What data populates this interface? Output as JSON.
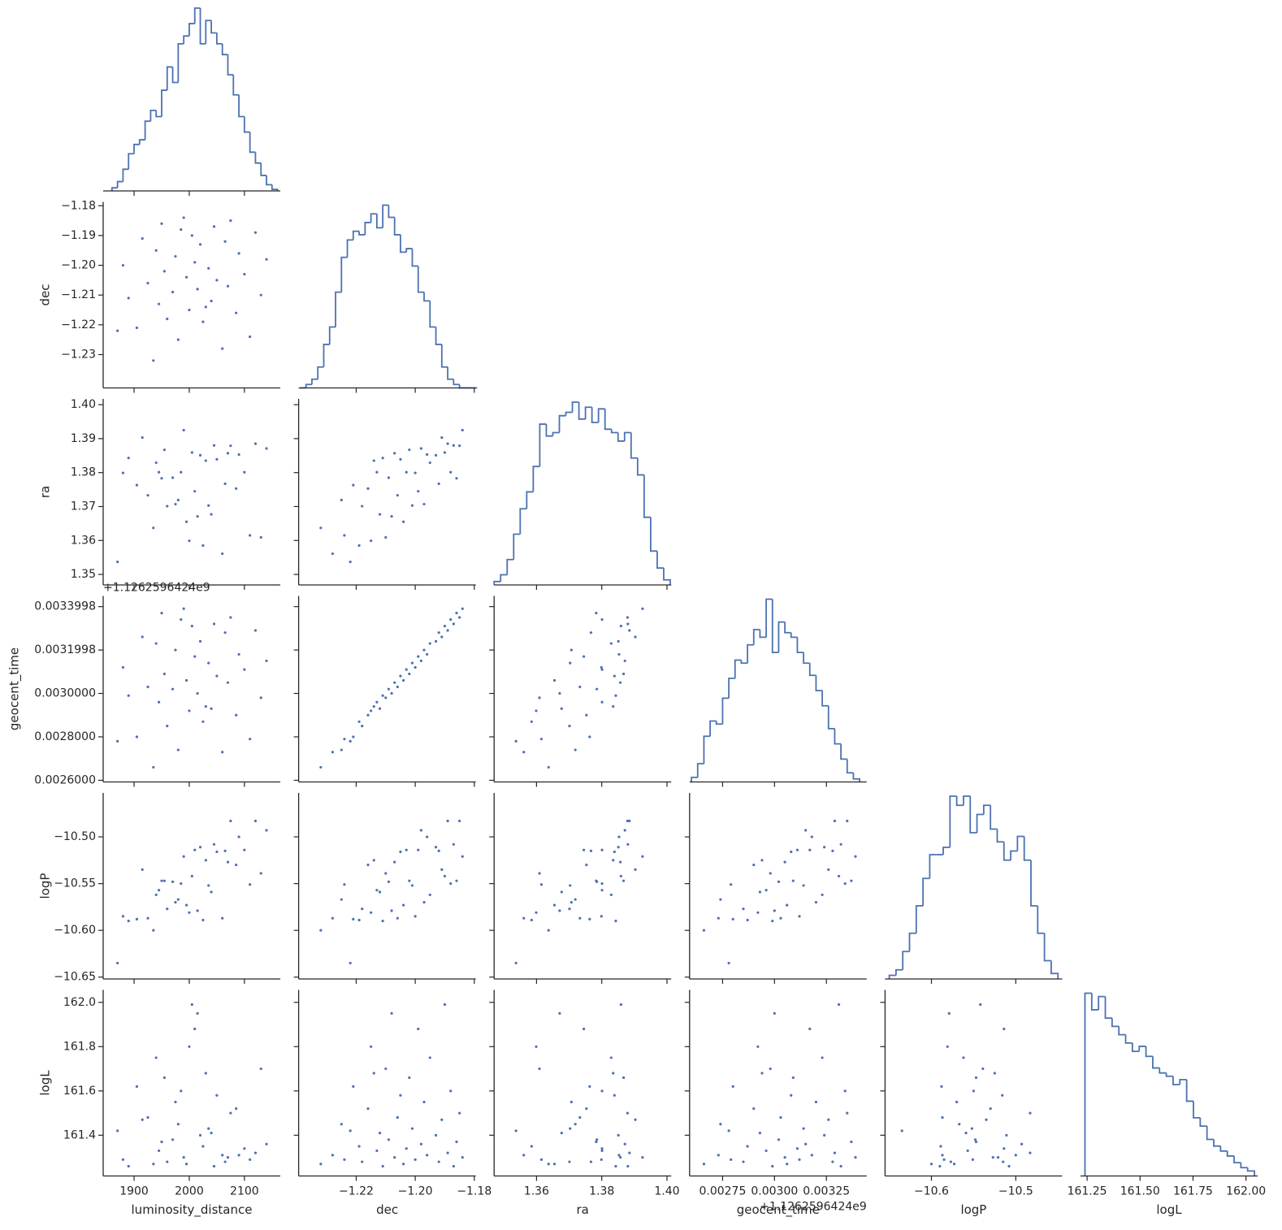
{
  "chart_data": {
    "type": "corner",
    "color": "#4c72b0",
    "variables": [
      {
        "name": "luminosity_distance",
        "values": [
          1935,
          2060,
          1980,
          2110,
          1905,
          2025,
          1960,
          2085,
          2000,
          1945,
          2040,
          1890,
          2130,
          1970,
          2015,
          2070,
          1925,
          2050,
          1995,
          2100,
          1955,
          2035,
          1880,
          2010,
          2140,
          1975,
          2090,
          1940,
          2020,
          2065,
          1915,
          2005,
          2120,
          1985,
          2045,
          1950,
          2075,
          1990,
          2030,
          1870
        ],
        "xlim": [
          1844,
          2165
        ],
        "xticks": [
          1900,
          2000,
          2100
        ],
        "hist": {
          "bins": [
            1860,
            1870,
            1880,
            1890,
            1900,
            1910,
            1920,
            1930,
            1940,
            1950,
            1960,
            1970,
            1980,
            1990,
            2000,
            2010,
            2020,
            2030,
            2040,
            2050,
            2060,
            2070,
            2080,
            2090,
            2100,
            2110,
            2120,
            2130,
            2140,
            2150,
            2160
          ],
          "counts": [
            2,
            6,
            14,
            24,
            30,
            33,
            45,
            52,
            48,
            65,
            80,
            70,
            95,
            100,
            108,
            118,
            95,
            110,
            102,
            95,
            88,
            75,
            62,
            48,
            38,
            25,
            18,
            10,
            4,
            1
          ]
        }
      },
      {
        "name": "dec",
        "values": [
          -1.232,
          -1.228,
          -1.225,
          -1.224,
          -1.221,
          -1.219,
          -1.218,
          -1.216,
          -1.215,
          -1.213,
          -1.212,
          -1.211,
          -1.21,
          -1.209,
          -1.208,
          -1.207,
          -1.206,
          -1.205,
          -1.204,
          -1.203,
          -1.202,
          -1.201,
          -1.2,
          -1.199,
          -1.198,
          -1.197,
          -1.196,
          -1.195,
          -1.193,
          -1.192,
          -1.191,
          -1.19,
          -1.189,
          -1.188,
          -1.187,
          -1.186,
          -1.185,
          -1.184,
          -1.214,
          -1.222
        ],
        "xlim": [
          -1.2395,
          -1.1795
        ],
        "xticks": [
          {
            "value": -1.22,
            "label": "−1.22"
          },
          {
            "value": -1.2,
            "label": "−1.20"
          },
          {
            "value": -1.18,
            "label": "−1.18"
          }
        ],
        "ylim": [
          -1.2412,
          -1.1787
        ],
        "yticks": [
          {
            "value": -1.23,
            "label": "−1.23"
          },
          {
            "value": -1.22,
            "label": "−1.22"
          },
          {
            "value": -1.21,
            "label": "−1.21"
          },
          {
            "value": -1.2,
            "label": "−1.20"
          },
          {
            "value": -1.19,
            "label": "−1.19"
          },
          {
            "value": -1.18,
            "label": "−1.18"
          }
        ],
        "hist": {
          "bins": [
            -1.239,
            -1.237,
            -1.235,
            -1.233,
            -1.231,
            -1.229,
            -1.227,
            -1.225,
            -1.223,
            -1.221,
            -1.219,
            -1.217,
            -1.215,
            -1.213,
            -1.211,
            -1.209,
            -1.207,
            -1.205,
            -1.203,
            -1.201,
            -1.199,
            -1.197,
            -1.195,
            -1.193,
            -1.191,
            -1.189,
            -1.187,
            -1.185,
            -1.183,
            -1.181,
            -1.179
          ],
          "counts": [
            0,
            2,
            5,
            12,
            25,
            35,
            55,
            75,
            85,
            90,
            88,
            95,
            100,
            92,
            105,
            98,
            88,
            78,
            80,
            70,
            55,
            50,
            35,
            25,
            12,
            5,
            2,
            0,
            0,
            0
          ]
        }
      },
      {
        "name": "ra",
        "values": [
          1.3637,
          1.3561,
          1.3719,
          1.3615,
          1.3763,
          1.3585,
          1.3701,
          1.3753,
          1.3599,
          1.3801,
          1.3677,
          1.3843,
          1.3609,
          1.3785,
          1.3671,
          1.3857,
          1.3733,
          1.3839,
          1.3655,
          1.3801,
          1.3867,
          1.3703,
          1.3799,
          1.3745,
          1.3871,
          1.3707,
          1.3853,
          1.3829,
          1.3851,
          1.3767,
          1.3903,
          1.3859,
          1.3885,
          1.3801,
          1.388,
          1.3783,
          1.3879,
          1.3925,
          1.3835,
          1.3537
        ],
        "xlim": [
          1.347,
          1.4013
        ],
        "xticks": [
          1.36,
          1.38,
          {
            "value": 1.4,
            "label": "1.40"
          }
        ],
        "ylim": [
          1.3469,
          1.4017
        ],
        "yticks": [
          1.35,
          1.36,
          1.37,
          1.38,
          1.39,
          {
            "value": 1.4,
            "label": "1.40"
          }
        ],
        "hist": {
          "bins": [
            1.347,
            1.349,
            1.351,
            1.353,
            1.355,
            1.357,
            1.359,
            1.361,
            1.363,
            1.365,
            1.367,
            1.369,
            1.371,
            1.373,
            1.375,
            1.377,
            1.379,
            1.381,
            1.383,
            1.385,
            1.387,
            1.389,
            1.391,
            1.393,
            1.395,
            1.397,
            1.399,
            1.401
          ],
          "counts": [
            2,
            6,
            15,
            30,
            45,
            55,
            70,
            95,
            88,
            90,
            100,
            102,
            108,
            98,
            105,
            96,
            104,
            92,
            90,
            85,
            90,
            75,
            65,
            40,
            20,
            10,
            3
          ]
        }
      },
      {
        "name": "geocent_time",
        "offset_text": "+1.1262596424e9",
        "values": [
          0.00266,
          0.00273,
          0.00274,
          0.00279,
          0.0028,
          0.00287,
          0.00285,
          0.0029,
          0.00292,
          0.00296,
          0.00293,
          0.00299,
          0.00298,
          0.00302,
          0.003,
          0.00305,
          0.00303,
          0.00308,
          0.00306,
          0.00311,
          0.00309,
          0.00314,
          0.00312,
          0.00317,
          0.00315,
          0.0032,
          0.00318,
          0.00323,
          0.00324,
          0.00328,
          0.00326,
          0.00331,
          0.00329,
          0.00334,
          0.00332,
          0.00337,
          0.00335,
          0.00339,
          0.00294,
          0.00278
        ],
        "xlim": [
          0.002591,
          0.003444
        ],
        "xticks": [
          {
            "value": 0.00275,
            "label": "0.00275"
          },
          {
            "value": 0.003,
            "label": "0.00300"
          },
          {
            "value": 0.00325,
            "label": "0.00325"
          }
        ],
        "ylim": [
          0.0025924,
          0.003449
        ],
        "yticks": [
          {
            "value": 0.0026,
            "label": "0.0026000"
          },
          {
            "value": 0.0028,
            "label": "0.0028000"
          },
          {
            "value": 0.003,
            "label": "0.0030000"
          },
          {
            "value": 0.0031998,
            "label": "0.0031998"
          },
          {
            "value": 0.0033998,
            "label": "0.0033998"
          }
        ],
        "hist": {
          "bins": [
            0.0026,
            0.00263,
            0.00266,
            0.00269,
            0.00272,
            0.00275,
            0.00278,
            0.00281,
            0.00284,
            0.00287,
            0.0029,
            0.00293,
            0.00296,
            0.00299,
            0.00302,
            0.00305,
            0.00308,
            0.00311,
            0.00314,
            0.00317,
            0.0032,
            0.00323,
            0.00326,
            0.00329,
            0.00332,
            0.00335,
            0.00338,
            0.00341
          ],
          "counts": [
            3,
            12,
            30,
            40,
            38,
            55,
            68,
            80,
            78,
            90,
            100,
            95,
            120,
            85,
            105,
            98,
            95,
            85,
            78,
            70,
            60,
            50,
            35,
            25,
            15,
            6,
            2
          ]
        }
      },
      {
        "name": "logP",
        "values": [
          -10.6,
          -10.587,
          -10.567,
          -10.551,
          -10.588,
          -10.589,
          -10.577,
          -10.53,
          -10.581,
          -10.557,
          -10.559,
          -10.59,
          -10.539,
          -10.548,
          -10.579,
          -10.527,
          -10.587,
          -10.516,
          -10.573,
          -10.514,
          -10.547,
          -10.552,
          -10.585,
          -10.514,
          -10.493,
          -10.57,
          -10.5,
          -10.562,
          -10.511,
          -10.515,
          -10.535,
          -10.542,
          -10.483,
          -10.55,
          -10.508,
          -10.547,
          -10.483,
          -10.521,
          -10.525,
          -10.635
        ],
        "xlim": [
          -10.655,
          -10.445
        ],
        "xticks": [
          {
            "value": -10.6,
            "label": "−10.6"
          },
          {
            "value": -10.5,
            "label": "−10.5"
          }
        ],
        "ylim": [
          -10.652,
          -10.453
        ],
        "yticks": [
          {
            "value": -10.65,
            "label": "−10.65"
          },
          {
            "value": -10.6,
            "label": "−10.60"
          },
          {
            "value": -10.55,
            "label": "−10.55"
          },
          {
            "value": -10.5,
            "label": "−10.50"
          }
        ],
        "hist": {
          "bins": [
            -10.65,
            -10.642,
            -10.634,
            -10.626,
            -10.618,
            -10.61,
            -10.602,
            -10.594,
            -10.586,
            -10.578,
            -10.57,
            -10.562,
            -10.554,
            -10.546,
            -10.538,
            -10.53,
            -10.522,
            -10.514,
            -10.506,
            -10.498,
            -10.49,
            -10.482,
            -10.474,
            -10.466,
            -10.458,
            -10.45
          ],
          "counts": [
            2,
            5,
            15,
            25,
            40,
            55,
            68,
            68,
            72,
            100,
            95,
            100,
            80,
            90,
            95,
            82,
            75,
            65,
            70,
            78,
            65,
            40,
            25,
            10,
            3
          ]
        }
      },
      {
        "name": "logL",
        "values": [
          161.27,
          161.31,
          161.45,
          161.29,
          161.62,
          161.35,
          161.28,
          161.52,
          161.8,
          161.33,
          161.41,
          161.26,
          161.7,
          161.38,
          161.95,
          161.3,
          161.48,
          161.58,
          161.27,
          161.34,
          161.66,
          161.43,
          161.29,
          161.88,
          161.36,
          161.55,
          161.31,
          161.75,
          161.4,
          161.28,
          161.47,
          161.99,
          161.32,
          161.6,
          161.26,
          161.37,
          161.5,
          161.3,
          161.68,
          161.42
        ],
        "xlim": [
          161.219,
          162.055
        ],
        "xticks": [
          161.25,
          {
            "value": 161.5,
            "label": "161.50"
          },
          161.75,
          {
            "value": 162,
            "label": "162.00"
          }
        ],
        "ylim": [
          161.216,
          162.056
        ],
        "yticks": [
          161.4,
          161.6,
          161.8,
          {
            "value": 162,
            "label": "162.0"
          }
        ],
        "hist": {
          "bins": [
            161.24,
            161.272,
            161.304,
            161.336,
            161.368,
            161.4,
            161.432,
            161.464,
            161.496,
            161.528,
            161.56,
            161.592,
            161.624,
            161.656,
            161.688,
            161.72,
            161.752,
            161.784,
            161.816,
            161.848,
            161.88,
            161.912,
            161.944,
            161.976,
            162.008,
            162.04
          ],
          "counts": [
            110,
            100,
            108,
            95,
            90,
            85,
            80,
            75,
            78,
            72,
            65,
            62,
            60,
            55,
            58,
            45,
            35,
            30,
            22,
            18,
            15,
            12,
            8,
            5,
            3
          ]
        }
      }
    ]
  }
}
